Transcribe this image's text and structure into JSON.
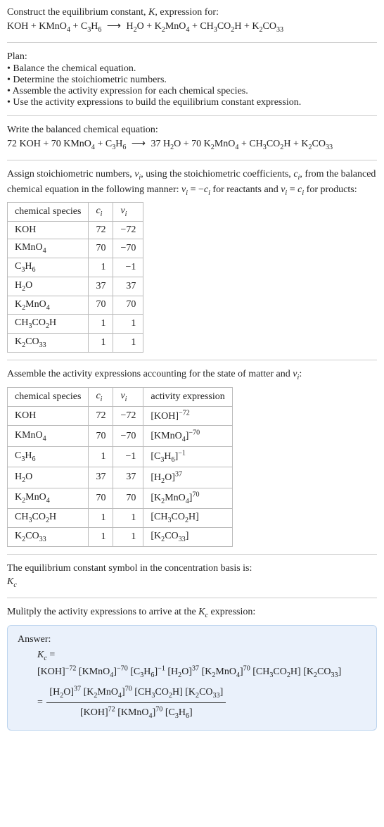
{
  "prompt": {
    "line1_pre": "Construct the equilibrium constant, ",
    "line1_post": ", expression for:"
  },
  "equation_unbalanced": {
    "reactants": [
      "KOH",
      "KMnO4",
      "C3H6"
    ],
    "products": [
      "H2O",
      "K2MnO4",
      "CH3CO2H",
      "K2CO33"
    ]
  },
  "plan": {
    "heading": "Plan:",
    "items": [
      "Balance the chemical equation.",
      "Determine the stoichiometric numbers.",
      "Assemble the activity expression for each chemical species.",
      "Use the activity expressions to build the equilibrium constant expression."
    ]
  },
  "balanced": {
    "heading": "Write the balanced chemical equation:",
    "coeffs_reactants": [
      "72",
      "70",
      ""
    ],
    "reactants": [
      "KOH",
      "KMnO4",
      "C3H6"
    ],
    "coeffs_products": [
      "37",
      "70",
      "",
      ""
    ],
    "products": [
      "H2O",
      "K2MnO4",
      "CH3CO2H",
      "K2CO33"
    ]
  },
  "assign": {
    "text_a": "Assign stoichiometric numbers, ",
    "text_b": ", using the stoichiometric coefficients, ",
    "text_c": ", from the balanced chemical equation in the following manner: ",
    "text_d": " for reactants and ",
    "text_e": " for products:"
  },
  "table1": {
    "headers": [
      "chemical species",
      "c_i",
      "ν_i"
    ],
    "rows": [
      {
        "species": "KOH",
        "c": "72",
        "v": "-72"
      },
      {
        "species": "KMnO4",
        "c": "70",
        "v": "-70"
      },
      {
        "species": "C3H6",
        "c": "1",
        "v": "-1"
      },
      {
        "species": "H2O",
        "c": "37",
        "v": "37"
      },
      {
        "species": "K2MnO4",
        "c": "70",
        "v": "70"
      },
      {
        "species": "CH3CO2H",
        "c": "1",
        "v": "1"
      },
      {
        "species": "K2CO33",
        "c": "1",
        "v": "1"
      }
    ]
  },
  "assemble_text": "Assemble the activity expressions accounting for the state of matter and ",
  "table2": {
    "headers": [
      "chemical species",
      "c_i",
      "ν_i",
      "activity expression"
    ],
    "rows": [
      {
        "species": "KOH",
        "c": "72",
        "v": "-72",
        "exp": "-72"
      },
      {
        "species": "KMnO4",
        "c": "70",
        "v": "-70",
        "exp": "-70"
      },
      {
        "species": "C3H6",
        "c": "1",
        "v": "-1",
        "exp": "-1"
      },
      {
        "species": "H2O",
        "c": "37",
        "v": "37",
        "exp": "37"
      },
      {
        "species": "K2MnO4",
        "c": "70",
        "v": "70",
        "exp": "70"
      },
      {
        "species": "CH3CO2H",
        "c": "1",
        "v": "1",
        "exp": ""
      },
      {
        "species": "K2CO33",
        "c": "1",
        "v": "1",
        "exp": ""
      }
    ]
  },
  "kc_text": "The equilibrium constant symbol in the concentration basis is:",
  "multiply_text_a": "Mulitply the activity expressions to arrive at the ",
  "multiply_text_b": " expression:",
  "answer": {
    "label": "Answer:",
    "products_exp": [
      "37",
      "70",
      "",
      ""
    ],
    "reactants_exp": [
      "72",
      "70",
      ""
    ]
  },
  "colors": {
    "text": "#222222",
    "border": "#bbbbbb",
    "hr": "#cccccc",
    "answer_bg": "#eaf1fb",
    "answer_border": "#bcd4ee"
  }
}
